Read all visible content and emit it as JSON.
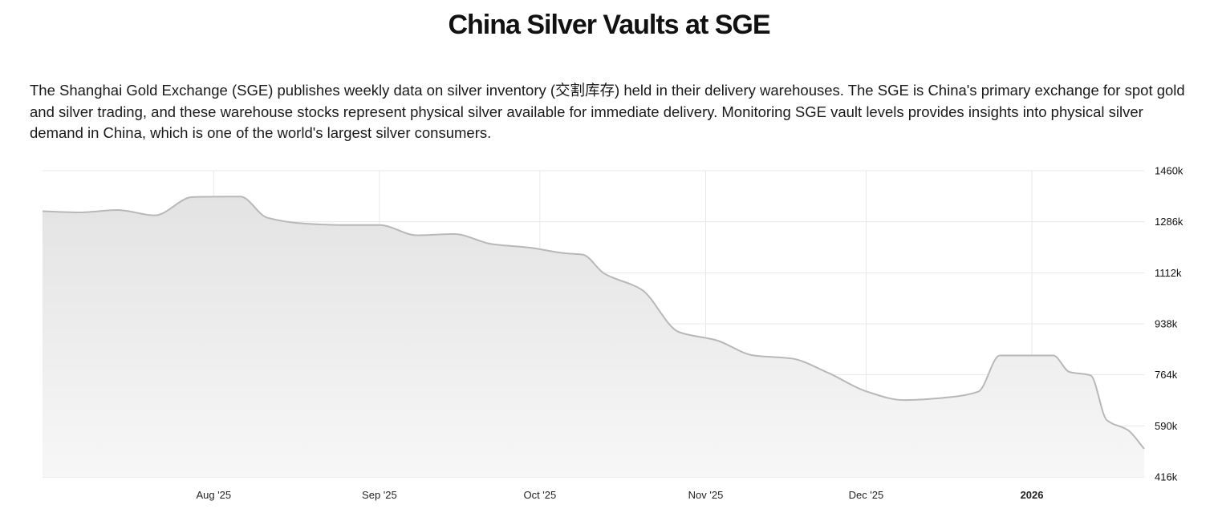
{
  "header": {
    "title": "China Silver Vaults at SGE",
    "description": "The Shanghai Gold Exchange (SGE) publishes weekly data on silver inventory (交割库存) held in their delivery warehouses. The SGE is China's primary exchange for spot gold and silver trading, and these warehouse stocks represent physical silver available for immediate delivery. Monitoring SGE vault levels provides insights into physical silver demand in China, which is one of the world's largest silver consumers."
  },
  "colors": {
    "line": "#b8b8b8",
    "area_top": "#e3e3e3",
    "area_bottom": "#f7f7f7",
    "grid": "#e8e8e8"
  },
  "chart_data": {
    "type": "area",
    "title": "",
    "xlabel": "",
    "ylabel": "",
    "ylim": [
      416,
      1460
    ],
    "xlim": [
      "2025-06-30",
      "2026-01-22"
    ],
    "y_ticks": [
      {
        "value": 1460,
        "label": "1460k"
      },
      {
        "value": 1286,
        "label": "1286k"
      },
      {
        "value": 1112,
        "label": "1112k"
      },
      {
        "value": 938,
        "label": "938k"
      },
      {
        "value": 764,
        "label": "764k"
      },
      {
        "value": 590,
        "label": "590k"
      },
      {
        "value": 416,
        "label": "416k"
      }
    ],
    "x_ticks": [
      {
        "date": "2025-08-01",
        "label": "Aug '25",
        "bold": false
      },
      {
        "date": "2025-09-01",
        "label": "Sep '25",
        "bold": false
      },
      {
        "date": "2025-10-01",
        "label": "Oct '25",
        "bold": false
      },
      {
        "date": "2025-11-01",
        "label": "Nov '25",
        "bold": false
      },
      {
        "date": "2025-12-01",
        "label": "Dec '25",
        "bold": false
      },
      {
        "date": "2026-01-01",
        "label": "2026",
        "bold": true
      }
    ],
    "grid": true,
    "legend": "none",
    "series": [
      {
        "x": [
          "2025-06-30",
          "2025-07-07",
          "2025-07-14",
          "2025-07-21",
          "2025-07-28",
          "2025-08-04",
          "2025-08-06",
          "2025-08-11",
          "2025-08-18",
          "2025-08-25",
          "2025-09-01",
          "2025-09-08",
          "2025-09-15",
          "2025-09-22",
          "2025-09-29",
          "2025-10-06",
          "2025-10-09",
          "2025-10-13",
          "2025-10-20",
          "2025-10-27",
          "2025-11-03",
          "2025-11-10",
          "2025-11-17",
          "2025-11-24",
          "2025-12-01",
          "2025-12-08",
          "2025-12-15",
          "2025-12-22",
          "2025-12-26",
          "2026-01-01",
          "2026-01-05",
          "2026-01-08",
          "2026-01-12",
          "2026-01-15",
          "2026-01-19",
          "2026-01-22"
        ],
        "y": [
          1322,
          1318,
          1326,
          1308,
          1370,
          1372,
          1372,
          1300,
          1280,
          1275,
          1275,
          1240,
          1244,
          1210,
          1198,
          1178,
          1174,
          1110,
          1055,
          910,
          882,
          830,
          820,
          770,
          708,
          678,
          685,
          707,
          830,
          830,
          830,
          774,
          762,
          610,
          575,
          512
        ]
      }
    ]
  }
}
